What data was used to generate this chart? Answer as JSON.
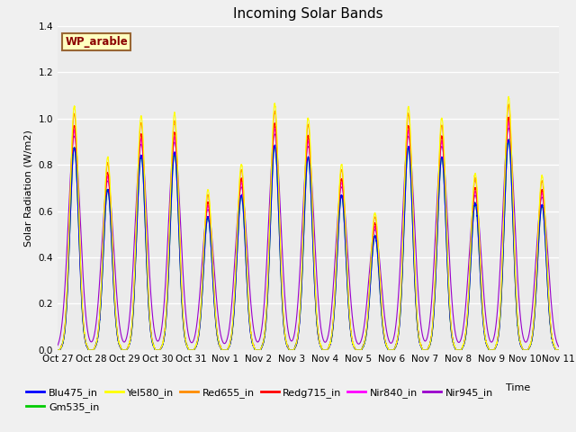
{
  "title": "Incoming Solar Bands",
  "xlabel": "Time",
  "ylabel": "Solar Radiation (W/m2)",
  "ylim": [
    0,
    1.4
  ],
  "annotation_text": "WP_arable",
  "annotation_color": "#8B0000",
  "annotation_bg": "#FFFFC0",
  "annotation_border": "#996633",
  "series_order": [
    "Nir945_in",
    "Nir840_in",
    "Redg715_in",
    "Red655_in",
    "Gm535_in",
    "Blu475_in",
    "Yel580_in"
  ],
  "series": {
    "Blu475_in": {
      "color": "#0000FF",
      "lw": 0.8,
      "scale": 0.83
    },
    "Gm535_in": {
      "color": "#00CC00",
      "lw": 0.8,
      "scale": 0.83
    },
    "Yel580_in": {
      "color": "#FFFF00",
      "lw": 0.8,
      "scale": 1.0
    },
    "Red655_in": {
      "color": "#FF8C00",
      "lw": 0.8,
      "scale": 0.97
    },
    "Redg715_in": {
      "color": "#FF0000",
      "lw": 0.8,
      "scale": 0.92
    },
    "Nir840_in": {
      "color": "#FF00FF",
      "lw": 0.8,
      "scale": 0.9
    },
    "Nir945_in": {
      "color": "#9900CC",
      "lw": 0.8,
      "scale": 0.88
    }
  },
  "legend_order": [
    "Blu475_in",
    "Gm535_in",
    "Yel580_in",
    "Red655_in",
    "Redg715_in",
    "Nir840_in",
    "Nir945_in"
  ],
  "tick_labels": [
    "Oct 27",
    "Oct 28",
    "Oct 29",
    "Oct 30",
    "Oct 31",
    "Nov 1",
    "Nov 2",
    "Nov 3",
    "Nov 4",
    "Nov 5",
    "Nov 6",
    "Nov 7",
    "Nov 8",
    "Nov 9",
    "Nov 10",
    "Nov 11"
  ],
  "n_days": 15,
  "pts_per_day": 288,
  "day_peaks": [
    1.05,
    0.83,
    1.01,
    1.02,
    0.69,
    0.8,
    1.06,
    1.0,
    0.8,
    0.59,
    1.05,
    1.0,
    0.76,
    1.09,
    0.75
  ],
  "plot_bg": "#EBEBEB",
  "grid_color": "#FFFFFF",
  "title_fontsize": 11,
  "legend_fontsize": 8,
  "axis_fontsize": 8,
  "tick_fontsize": 7.5
}
